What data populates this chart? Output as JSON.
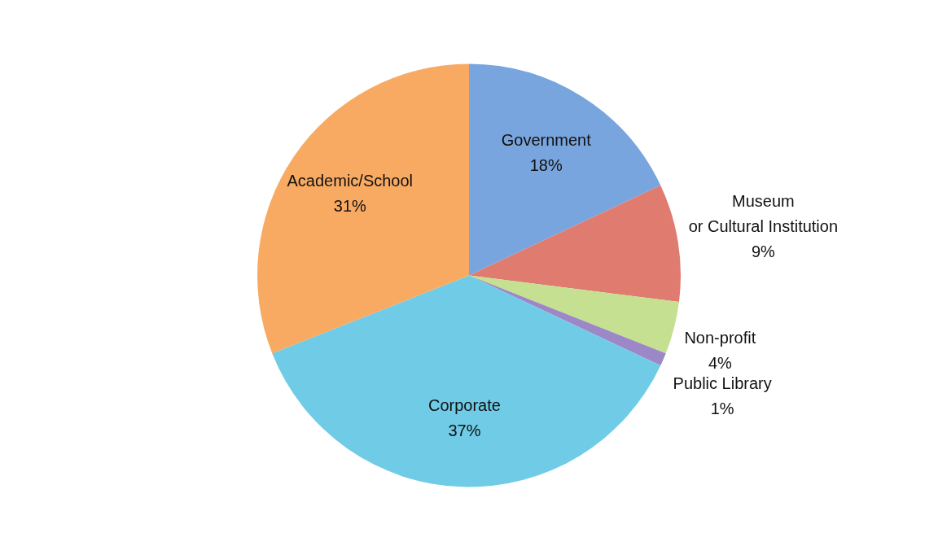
{
  "chart_data": {
    "type": "pie",
    "categories": [
      "Government",
      "Museum or Cultural Institution",
      "Non-profit",
      "Public Library",
      "Corporate",
      "Academic/School"
    ],
    "values": [
      18,
      9,
      4,
      1,
      37,
      31
    ],
    "colors": [
      "#78a5de",
      "#e07b70",
      "#c4e090",
      "#9c88c6",
      "#6fcbe6",
      "#f8aa62"
    ],
    "value_labels": [
      "18%",
      "9%",
      "4%",
      "1%",
      "37%",
      "31%"
    ],
    "legend": false
  }
}
